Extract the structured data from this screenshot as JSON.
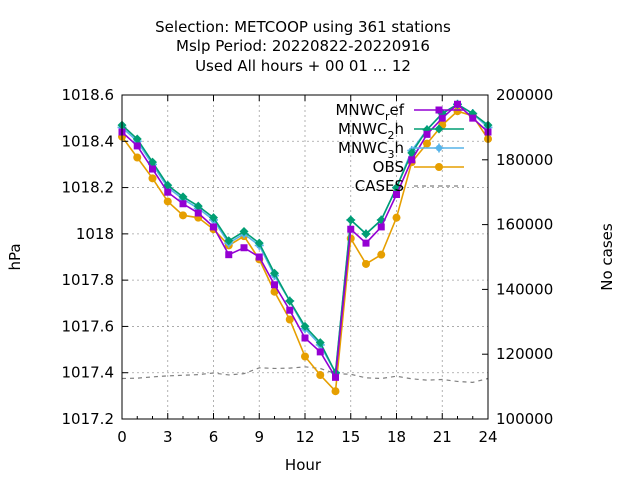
{
  "chart_data": {
    "type": "line",
    "title_lines": [
      "Selection: METCOOP using   361 stations",
      "Mslp   Period: 20220822-20220916",
      "Used  All hours  + 00 01 ... 12"
    ],
    "xlabel": "Hour",
    "ylabel": "hPa",
    "y2label": "No cases",
    "xlim": [
      0,
      24
    ],
    "ylim": [
      1017.2,
      1018.6
    ],
    "y2lim": [
      100000,
      200000
    ],
    "x_ticks": [
      0,
      3,
      6,
      9,
      12,
      15,
      18,
      21,
      24
    ],
    "y_ticks": [
      "1017.2",
      "1017.4",
      "1017.6",
      "1017.8",
      "1018",
      "1018.2",
      "1018.4",
      "1018.6"
    ],
    "y2_ticks": [
      "100000",
      "120000",
      "140000",
      "160000",
      "180000",
      "200000"
    ],
    "grid": true,
    "legend_position": "top-right",
    "x": [
      0,
      1,
      2,
      3,
      4,
      5,
      6,
      7,
      8,
      9,
      10,
      11,
      12,
      13,
      14,
      15,
      16,
      17,
      18,
      19,
      20,
      21,
      22,
      23,
      24
    ],
    "series": [
      {
        "name": "MNWC_ref",
        "legend_main": "MNWC",
        "legend_sub": "r",
        "legend_tail": "ef",
        "color": "#9400d3",
        "marker": "square",
        "axis": "y1",
        "values": [
          1018.44,
          1018.38,
          1018.28,
          1018.18,
          1018.13,
          1018.09,
          1018.03,
          1017.91,
          1017.94,
          1017.9,
          1017.78,
          1017.67,
          1017.55,
          1017.49,
          1017.38,
          1018.02,
          1017.96,
          1018.03,
          1018.17,
          1018.32,
          1018.43,
          1018.5,
          1018.56,
          1018.5,
          1018.44
        ]
      },
      {
        "name": "MNWC_2h",
        "legend_main": "MNWC",
        "legend_sub": "2",
        "legend_tail": "h",
        "color": "#009e73",
        "marker": "diamond",
        "axis": "y1",
        "values": [
          1018.47,
          1018.41,
          1018.31,
          1018.21,
          1018.16,
          1018.12,
          1018.07,
          1017.97,
          1018.01,
          1017.96,
          1017.83,
          1017.71,
          1017.6,
          1017.53,
          1017.4,
          1018.06,
          1018.0,
          1018.06,
          1018.2,
          1018.35,
          1018.45,
          1018.52,
          1018.56,
          1018.52,
          1018.47
        ]
      },
      {
        "name": "MNWC_3h",
        "legend_main": "MNWC",
        "legend_sub": "3",
        "legend_tail": "h",
        "color": "#56b4e9",
        "marker": "cross",
        "axis": "y1",
        "values": [
          1018.46,
          1018.4,
          1018.3,
          1018.2,
          1018.15,
          1018.11,
          1018.06,
          1017.96,
          1018.0,
          1017.95,
          1017.82,
          1017.71,
          1017.59,
          1017.52,
          1017.4,
          1018.06,
          1018.0,
          1018.06,
          1018.2,
          1018.36,
          1018.45,
          1018.52,
          1018.56,
          1018.52,
          1018.46
        ]
      },
      {
        "name": "OBS",
        "legend_main": "OBS",
        "legend_sub": "",
        "legend_tail": "",
        "color": "#e69f00",
        "marker": "circle",
        "axis": "y1",
        "values": [
          1018.42,
          1018.33,
          1018.24,
          1018.14,
          1018.08,
          1018.07,
          1018.02,
          1017.95,
          1017.99,
          1017.89,
          1017.75,
          1017.63,
          1017.47,
          1017.39,
          1017.32,
          1017.98,
          1017.87,
          1017.91,
          1018.07,
          1018.31,
          1018.39,
          1018.47,
          1018.53,
          1018.51,
          1018.41
        ]
      },
      {
        "name": "CASES",
        "legend_main": "CASES",
        "legend_sub": "",
        "legend_tail": "",
        "color": "#808080",
        "marker": "none",
        "dashed": true,
        "axis": "y2",
        "values": [
          112500,
          112600,
          113000,
          113300,
          113500,
          113700,
          114200,
          113600,
          114000,
          115800,
          115600,
          115700,
          116100,
          115600,
          114000,
          113800,
          112700,
          112500,
          113200,
          112400,
          112000,
          112200,
          111600,
          111300,
          112500
        ]
      }
    ]
  }
}
